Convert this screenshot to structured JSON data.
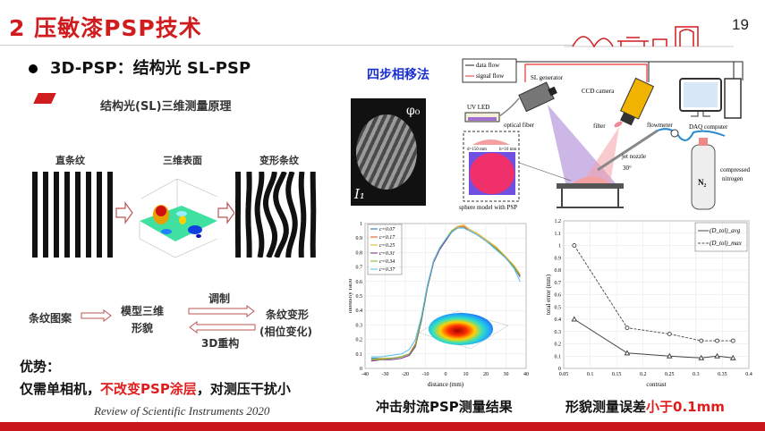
{
  "header": {
    "title": "2 压敏漆PSP技术",
    "page_number": "19",
    "accent": "#d01c1f"
  },
  "bullet": "3D-PSP：结构光 SL-PSP",
  "principle": {
    "title": "结构光(SL)三维测量原理",
    "labels": [
      "直条纹",
      "三维表面",
      "变形条纹"
    ],
    "flow": {
      "pattern": "条纹图案",
      "model_line1": "模型三维",
      "model_line2": "形貌",
      "modulate": "调制",
      "reconstruct": "3D重构",
      "deform_line1": "条纹变形",
      "deform_line2": "(相位变化)"
    }
  },
  "advantages": {
    "title": "优势：",
    "text_a": "仅需单相机，",
    "text_red": "不改变PSP涂层",
    "text_b": "，对测压干扰小"
  },
  "citation": "Review of Scientific Instruments 2020",
  "method": "四步相移法",
  "fringe_image": {
    "phi": "φ₀",
    "intensity": "I₁"
  },
  "schematic": {
    "data_flow": "data flow",
    "signal_flow": "signal flow",
    "sl_generator": "SL generator",
    "ccd_camera": "CCD camera",
    "uv_led": "UV LED",
    "optical_fiber": "optical fiber",
    "filter": "filter",
    "flowmeter": "flowmeter",
    "daq_computer": "DAQ computer",
    "jet_nozzle": "jet nozzle",
    "angle": "30°",
    "tank_label": "N₂",
    "compressed": "compressed",
    "nitrogen": "nitrogen",
    "sphere_model": "sphere model with PSP",
    "diameter": "d=150 mm",
    "height": "h=10 mm"
  },
  "captions": {
    "chart1": "冲击射流PSP测量结果",
    "chart2_a": "形貌测量误差",
    "chart2_red": "小于0.1mm"
  },
  "chart_data": [
    {
      "type": "line",
      "xlabel": "distance (mm)",
      "ylabel": "intensity ratio",
      "xlim": [
        -40,
        40
      ],
      "ylim": [
        0,
        1
      ],
      "xticks": [
        -40,
        -30,
        -20,
        -10,
        0,
        10,
        20,
        30,
        40
      ],
      "yticks": [
        0,
        0.1,
        0.2,
        0.3,
        0.4,
        0.5,
        0.6,
        0.7,
        0.8,
        0.9,
        1
      ],
      "grid": true,
      "legend": "top-left",
      "x": [
        -37,
        -32,
        -27,
        -22,
        -18,
        -15,
        -12,
        -9,
        -6,
        -3,
        0,
        3,
        6,
        9,
        12,
        16,
        20,
        25,
        30,
        34,
        37
      ],
      "series": [
        {
          "name": "c=0.07",
          "color": "#0072bd",
          "values": [
            0.07,
            0.07,
            0.07,
            0.08,
            0.1,
            0.16,
            0.33,
            0.56,
            0.73,
            0.82,
            0.88,
            0.94,
            0.97,
            0.97,
            0.95,
            0.92,
            0.88,
            0.83,
            0.76,
            0.7,
            0.64
          ]
        },
        {
          "name": "c=0.17",
          "color": "#d95319",
          "values": [
            0.06,
            0.06,
            0.07,
            0.08,
            0.1,
            0.17,
            0.34,
            0.57,
            0.74,
            0.83,
            0.89,
            0.95,
            0.98,
            0.98,
            0.95,
            0.92,
            0.88,
            0.83,
            0.77,
            0.7,
            0.64
          ]
        },
        {
          "name": "c=0.25",
          "color": "#edb120",
          "values": [
            0.06,
            0.07,
            0.07,
            0.08,
            0.1,
            0.16,
            0.34,
            0.57,
            0.74,
            0.83,
            0.89,
            0.95,
            0.98,
            0.99,
            0.96,
            0.93,
            0.89,
            0.84,
            0.77,
            0.71,
            0.65
          ]
        },
        {
          "name": "c=0.31",
          "color": "#7e2f8e",
          "values": [
            0.05,
            0.06,
            0.06,
            0.07,
            0.09,
            0.15,
            0.33,
            0.56,
            0.73,
            0.82,
            0.88,
            0.94,
            0.97,
            0.97,
            0.95,
            0.92,
            0.88,
            0.83,
            0.76,
            0.7,
            0.63
          ]
        },
        {
          "name": "c=0.34",
          "color": "#77ac30",
          "values": [
            0.06,
            0.06,
            0.07,
            0.08,
            0.1,
            0.16,
            0.34,
            0.57,
            0.74,
            0.83,
            0.89,
            0.95,
            0.97,
            0.97,
            0.95,
            0.92,
            0.88,
            0.83,
            0.76,
            0.7,
            0.64
          ]
        },
        {
          "name": "c=0.37",
          "color": "#4dbeee",
          "values": [
            0.08,
            0.08,
            0.09,
            0.1,
            0.13,
            0.2,
            0.36,
            0.58,
            0.74,
            0.83,
            0.89,
            0.94,
            0.97,
            0.97,
            0.95,
            0.92,
            0.88,
            0.82,
            0.76,
            0.69,
            0.6
          ]
        }
      ]
    },
    {
      "type": "line",
      "xlabel": "contrast",
      "ylabel": "total error (mm)",
      "xlim": [
        0.05,
        0.4
      ],
      "ylim": [
        0,
        1.2
      ],
      "xticks": [
        0.05,
        0.1,
        0.15,
        0.2,
        0.25,
        0.3,
        0.35,
        0.4
      ],
      "yticks": [
        0,
        0.1,
        0.2,
        0.3,
        0.4,
        0.5,
        0.6,
        0.7,
        0.8,
        0.9,
        1,
        1.1,
        1.2
      ],
      "grid": true,
      "legend": "top-right",
      "x": [
        0.07,
        0.17,
        0.25,
        0.31,
        0.34,
        0.37
      ],
      "series": [
        {
          "name": "(D_tol)_avg",
          "marker": "triangle",
          "color": "#444",
          "values": [
            0.4,
            0.125,
            0.1,
            0.085,
            0.1,
            0.085
          ]
        },
        {
          "name": "(D_tol)_max",
          "marker": "circle",
          "color": "#555",
          "dashed": true,
          "values": [
            1.0,
            0.33,
            0.28,
            0.225,
            0.225,
            0.225
          ]
        }
      ]
    }
  ]
}
